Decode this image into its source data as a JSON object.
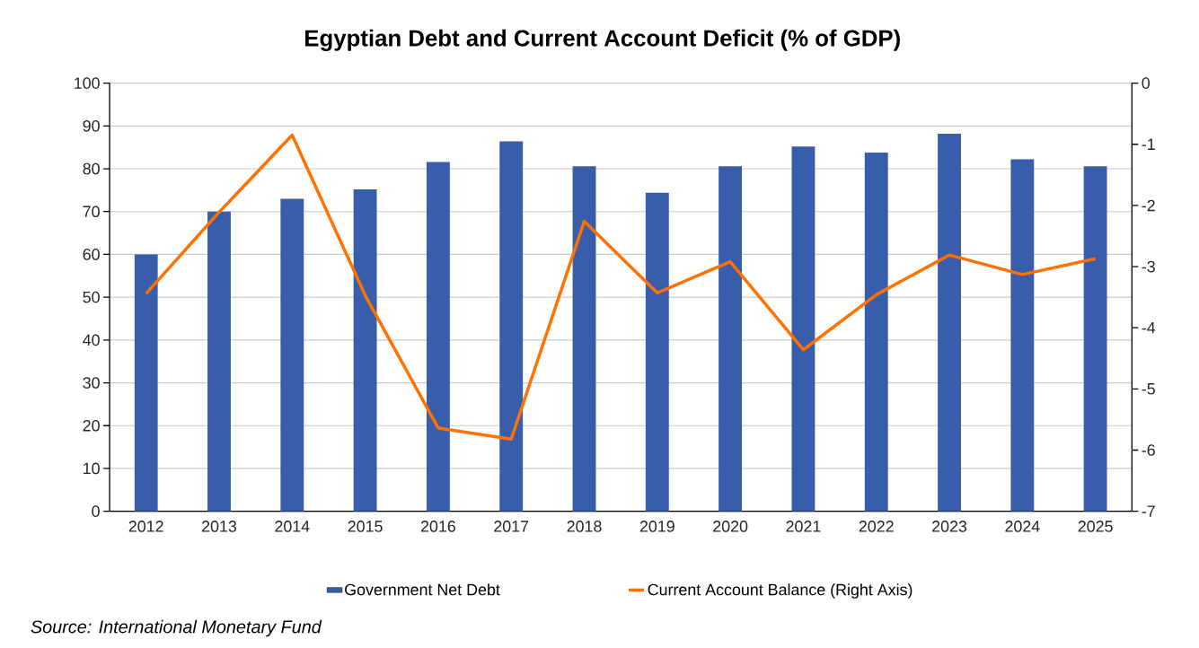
{
  "chart_data": {
    "type": "bar",
    "title": "Egyptian Debt and Current Account Deficit (% of GDP)",
    "categories": [
      "2012",
      "2013",
      "2014",
      "2015",
      "2016",
      "2017",
      "2018",
      "2019",
      "2020",
      "2021",
      "2022",
      "2023",
      "2024",
      "2025"
    ],
    "series": [
      {
        "name": "Government Net Debt",
        "color": "#385dab",
        "values": [
          60,
          70,
          73,
          75.2,
          81.6,
          86.4,
          80.6,
          74.4,
          80.6,
          85.2,
          83.8,
          88.2,
          82.2,
          80.6
        ]
      },
      {
        "name": "Current Account Balance (Right Axis)",
        "type": "line",
        "axis": "y2",
        "color": "#ff7100",
        "values": [
          -3.44,
          -2.11,
          -0.85,
          -3.47,
          -5.64,
          -5.82,
          -2.26,
          -3.43,
          -2.92,
          -4.36,
          -3.46,
          -2.81,
          -3.13,
          -2.87
        ]
      }
    ],
    "ylim": [
      0,
      100
    ],
    "yticks": [
      0,
      10,
      20,
      30,
      40,
      50,
      60,
      70,
      80,
      90,
      100
    ],
    "y2lim": [
      -7,
      0
    ],
    "y2ticks": [
      -7,
      -6,
      -5,
      -4,
      -3,
      -2,
      -1,
      0
    ],
    "grid": "y",
    "legend": "bottom",
    "annotations": [
      "Source: International Monetary Fund"
    ]
  }
}
